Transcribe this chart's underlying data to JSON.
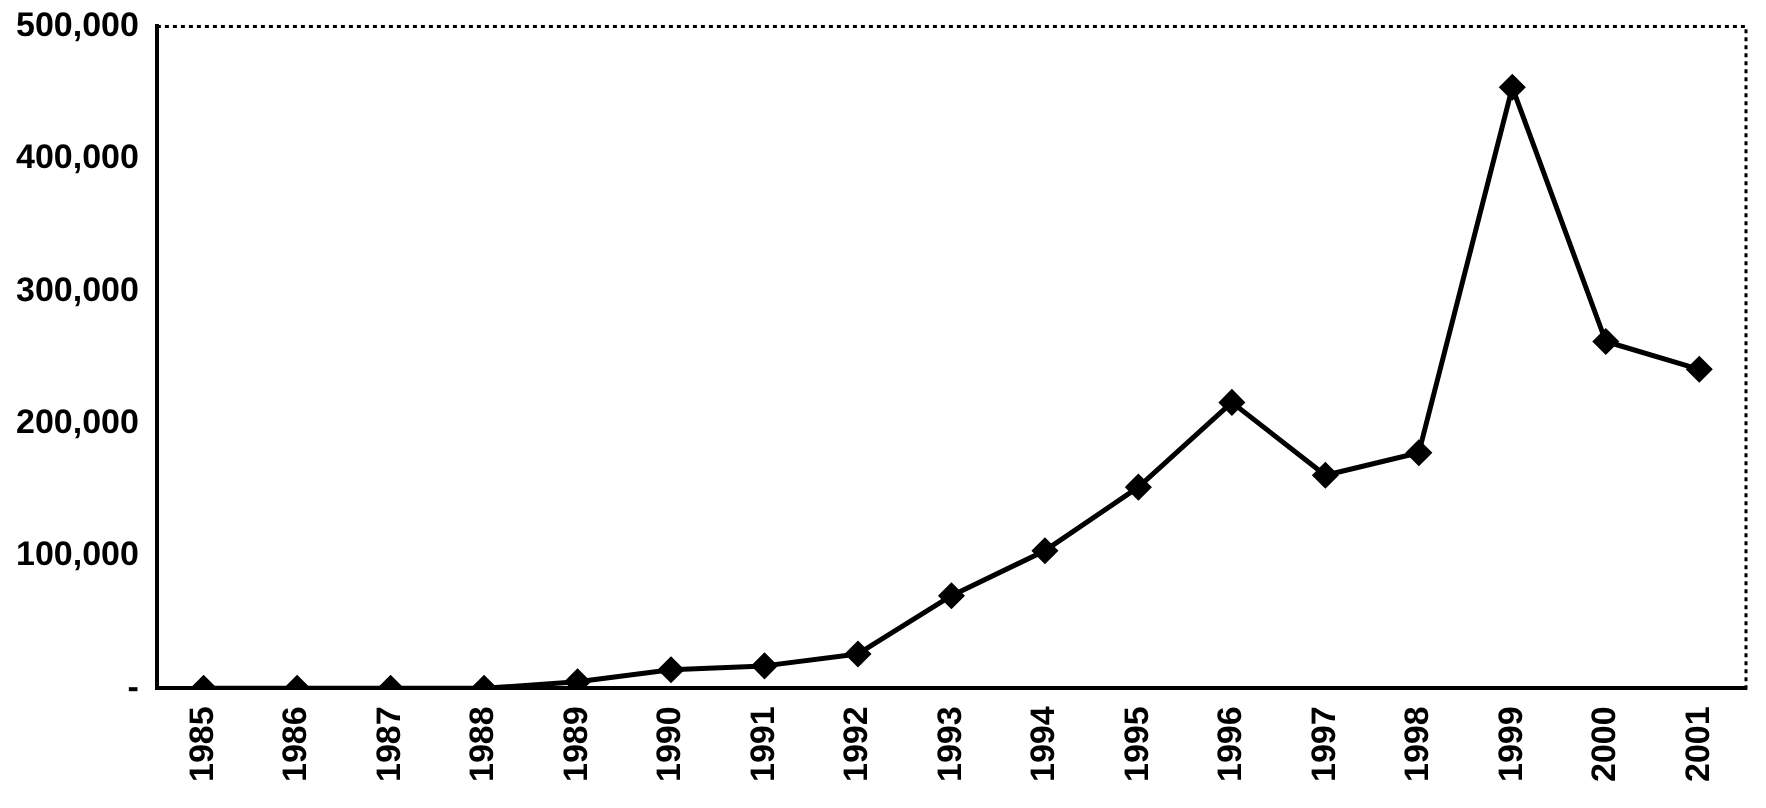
{
  "chart_data": {
    "type": "line",
    "categories": [
      "1985",
      "1986",
      "1987",
      "1988",
      "1989",
      "1990",
      "1991",
      "1992",
      "1993",
      "1994",
      "1995",
      "1996",
      "1997",
      "1998",
      "1999",
      "2000",
      "2001"
    ],
    "values": [
      0,
      0,
      0,
      0,
      5000,
      14000,
      17000,
      26000,
      70000,
      104000,
      152000,
      216000,
      161000,
      178000,
      454000,
      262000,
      241000
    ],
    "color": "#000000",
    "marker": "diamond",
    "line_style": "solid",
    "ylim": [
      0,
      500000
    ],
    "yticks": [
      {
        "value": 0,
        "label": "-"
      },
      {
        "value": 100000,
        "label": "100,000"
      },
      {
        "value": 200000,
        "label": "200,000"
      },
      {
        "value": 300000,
        "label": "300,000"
      },
      {
        "value": 400000,
        "label": "400,000"
      },
      {
        "value": 500000,
        "label": "500,000"
      }
    ],
    "grid": false,
    "legend": false
  }
}
